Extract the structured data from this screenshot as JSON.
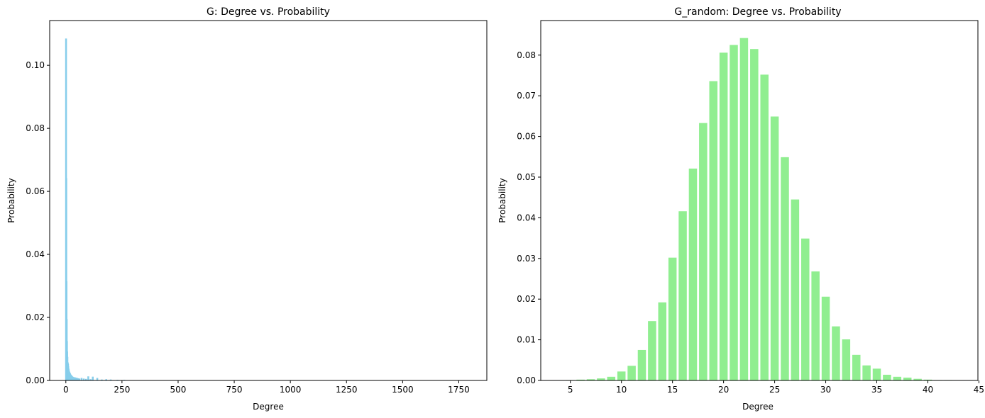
{
  "figure": {
    "background": "#ffffff",
    "axis_color": "#000000"
  },
  "chart_data": [
    {
      "type": "bar",
      "title": "G: Degree vs. Probability",
      "xlabel": "Degree",
      "ylabel": "Probability",
      "bar_color": "#87CEEB",
      "bar_width": 8,
      "xlim": [
        -72,
        1875
      ],
      "ylim": [
        0,
        0.1142
      ],
      "xticks": [
        0,
        250,
        500,
        750,
        1000,
        1250,
        1500,
        1750
      ],
      "xtick_labels": [
        "0",
        "250",
        "500",
        "750",
        "1000",
        "1250",
        "1500",
        "1750"
      ],
      "yticks": [
        0.0,
        0.02,
        0.04,
        0.06,
        0.08,
        0.1
      ],
      "ytick_labels": [
        "0.00",
        "0.02",
        "0.04",
        "0.06",
        "0.08",
        "0.10"
      ],
      "grid": false,
      "x": [
        1,
        2,
        3,
        4,
        5,
        6,
        7,
        8,
        9,
        10,
        11,
        12,
        13,
        14,
        15,
        16,
        17,
        18,
        19,
        20,
        22,
        24,
        26,
        28,
        30,
        33,
        36,
        40,
        45,
        50,
        55,
        60,
        70,
        80,
        90,
        100,
        110,
        120,
        140,
        160,
        180,
        200,
        230,
        260,
        300
      ],
      "values": [
        0.1085,
        0.0642,
        0.0315,
        0.0195,
        0.0125,
        0.0092,
        0.0075,
        0.0058,
        0.0055,
        0.0052,
        0.0045,
        0.0038,
        0.0035,
        0.003,
        0.0028,
        0.0026,
        0.0025,
        0.0022,
        0.0022,
        0.002,
        0.0018,
        0.0016,
        0.0015,
        0.0013,
        0.0012,
        0.0011,
        0.001,
        0.001,
        0.0009,
        0.0008,
        0.0007,
        0.0006,
        0.0008,
        0.0006,
        0.0005,
        0.0013,
        0.0004,
        0.0012,
        0.0008,
        0.0003,
        0.0004,
        0.0003,
        0.0002,
        0.0002,
        0.0001
      ]
    },
    {
      "type": "bar",
      "title": "G_random: Degree vs. Probability",
      "xlabel": "Degree",
      "ylabel": "Probability",
      "bar_color": "#90EE90",
      "bar_width": 0.8,
      "xlim": [
        2.1,
        44.9
      ],
      "ylim": [
        0,
        0.0885
      ],
      "xticks": [
        5,
        10,
        15,
        20,
        25,
        30,
        35,
        40,
        45
      ],
      "xtick_labels": [
        "5",
        "10",
        "15",
        "20",
        "25",
        "30",
        "35",
        "40",
        "45"
      ],
      "yticks": [
        0.0,
        0.01,
        0.02,
        0.03,
        0.04,
        0.05,
        0.06,
        0.07,
        0.08
      ],
      "ytick_labels": [
        "0.00",
        "0.01",
        "0.02",
        "0.03",
        "0.04",
        "0.05",
        "0.06",
        "0.07",
        "0.08"
      ],
      "grid": false,
      "x": [
        4,
        5,
        6,
        7,
        8,
        9,
        10,
        11,
        12,
        13,
        14,
        15,
        16,
        17,
        18,
        19,
        20,
        21,
        22,
        23,
        24,
        25,
        26,
        27,
        28,
        29,
        30,
        31,
        32,
        33,
        34,
        35,
        36,
        37,
        38,
        39,
        40,
        41,
        42,
        43
      ],
      "values": [
        5e-05,
        0.0001,
        0.0002,
        0.0003,
        0.0005,
        0.0009,
        0.0022,
        0.0036,
        0.0075,
        0.0146,
        0.0192,
        0.0302,
        0.0416,
        0.0521,
        0.0633,
        0.0736,
        0.0806,
        0.0825,
        0.0842,
        0.0815,
        0.0752,
        0.0649,
        0.0549,
        0.0445,
        0.0349,
        0.0268,
        0.0206,
        0.0133,
        0.0101,
        0.0063,
        0.0037,
        0.0029,
        0.0014,
        0.0009,
        0.0007,
        0.0004,
        0.0002,
        0.0001,
        0.0001,
        5e-05
      ]
    }
  ]
}
